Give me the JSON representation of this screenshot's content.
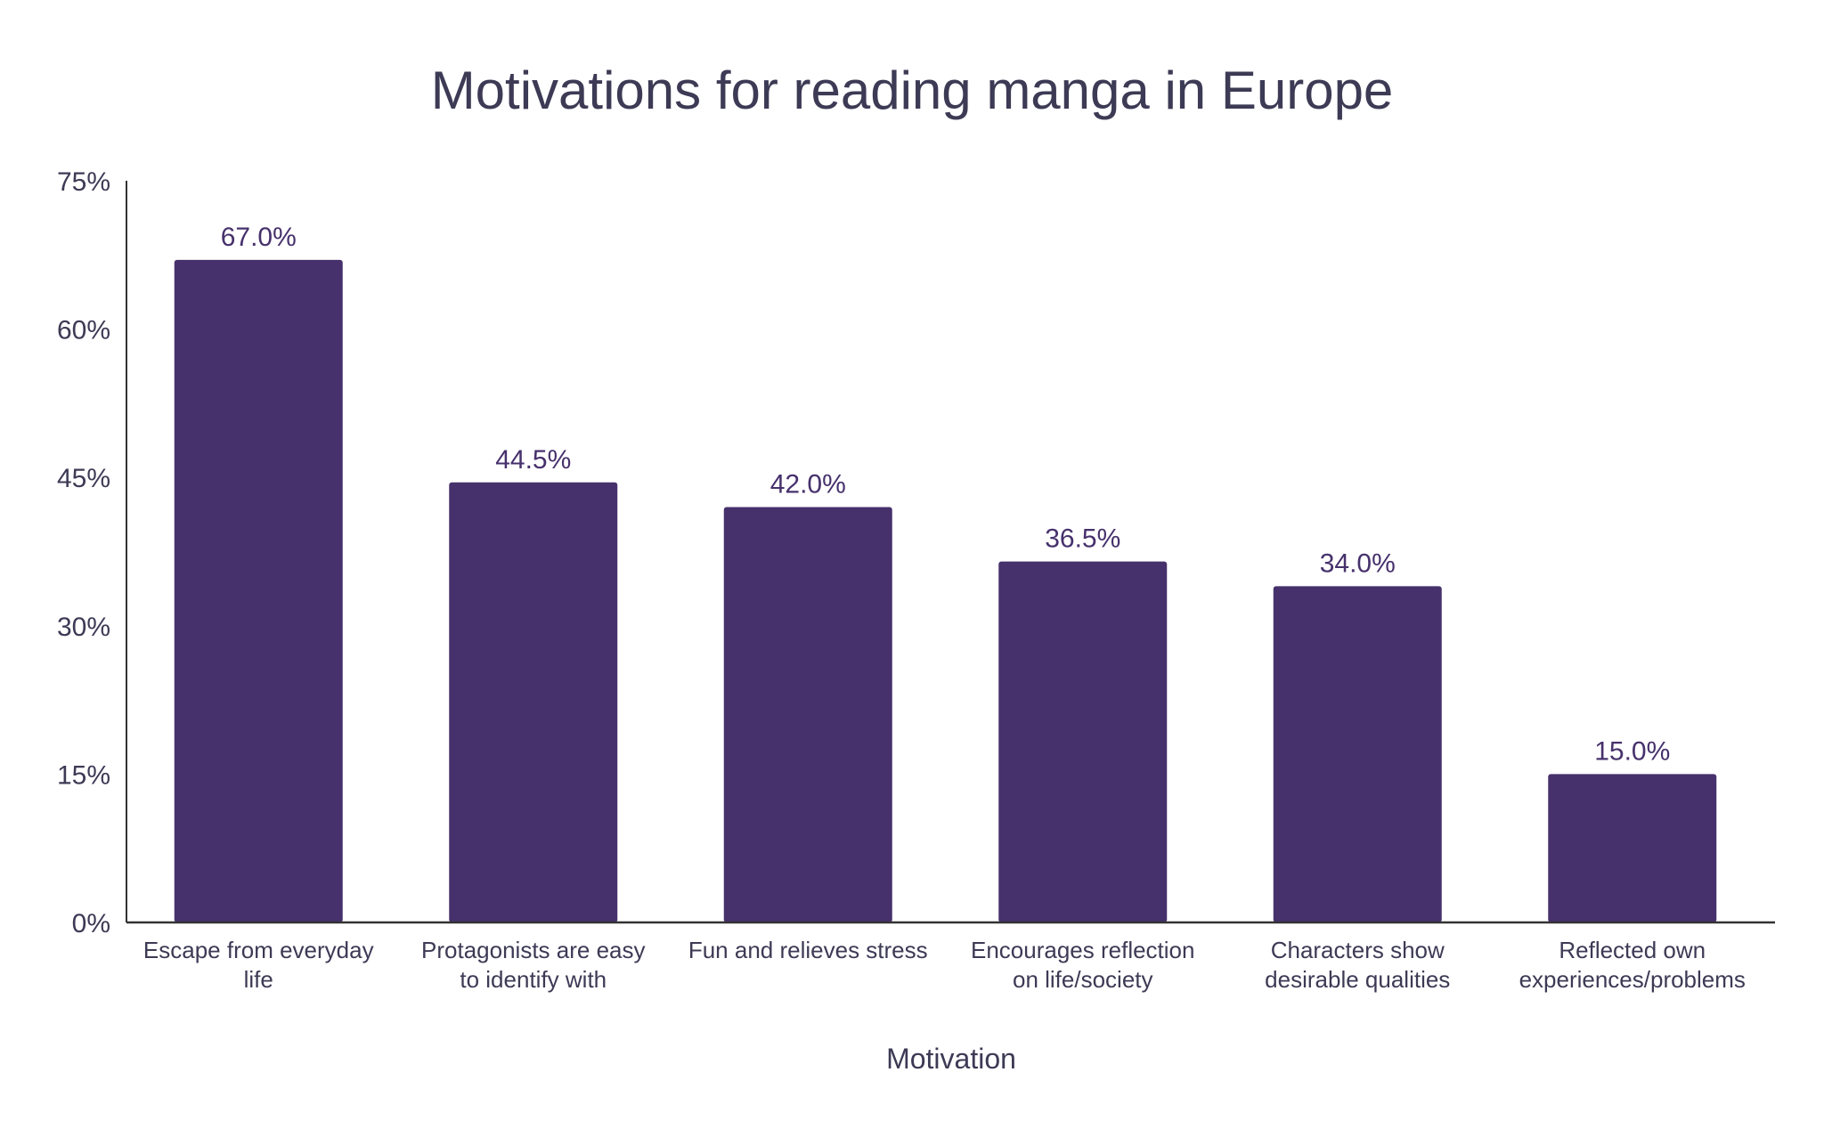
{
  "chart_data": {
    "type": "bar",
    "title": "Motivations for reading manga in Europe",
    "xlabel": "Motivation",
    "ylabel": "",
    "ylim": [
      0,
      75
    ],
    "yticks": [
      0,
      15,
      30,
      45,
      60,
      75
    ],
    "ytick_labels": [
      "0%",
      "15%",
      "30%",
      "45%",
      "60%",
      "75%"
    ],
    "grid": false,
    "categories": [
      [
        "Escape from everyday",
        "life"
      ],
      [
        "Protagonists are easy",
        "to identify with"
      ],
      [
        "Fun and relieves stress"
      ],
      [
        "Encourages reflection",
        "on life/society"
      ],
      [
        "Characters show",
        "desirable qualities"
      ],
      [
        "Reflected own",
        "experiences/problems"
      ]
    ],
    "values": [
      67.0,
      44.5,
      42.0,
      36.5,
      34.0,
      15.0
    ],
    "data_labels": [
      "67.0%",
      "44.5%",
      "42.0%",
      "36.5%",
      "34.0%",
      "15.0%"
    ],
    "colors": {
      "bar": "#46316c",
      "text": "#3d3a55",
      "axis": "#333333"
    }
  }
}
